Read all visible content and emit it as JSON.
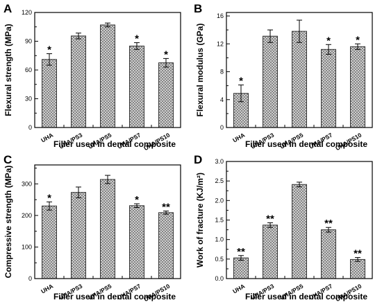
{
  "chart_data": [
    {
      "type": "bar",
      "panel": "A",
      "categories": [
        "UHA",
        "UHA/PS3",
        "UHA/PS5",
        "UHA/PS7",
        "UHA/PS10"
      ],
      "values": [
        71,
        95.5,
        107,
        85,
        67.5
      ],
      "errors": [
        6,
        3,
        2,
        3.5,
        4.5
      ],
      "annotations": [
        "*",
        "",
        "",
        "*",
        "*"
      ],
      "xlabel": "Filler used in dental composite",
      "ylabel": "Flexural strength (MPa)",
      "ylim": [
        0,
        120
      ],
      "yticks": [
        0,
        30,
        60,
        90,
        120
      ],
      "ytick_labels": [
        "0",
        "30",
        "60",
        "90",
        "120"
      ],
      "grid": false
    },
    {
      "type": "bar",
      "panel": "B",
      "categories": [
        "UHA",
        "UHA/PS3",
        "UHA/PS5",
        "UHA/PS7",
        "UHA/PS10"
      ],
      "values": [
        4.9,
        13.1,
        13.8,
        11.2,
        11.6
      ],
      "errors": [
        1.2,
        0.9,
        1.6,
        0.7,
        0.4
      ],
      "annotations": [
        "*",
        "",
        "",
        "*",
        "*"
      ],
      "xlabel": "Filler used in dental composite",
      "ylabel": "Flexural modulus (GPa)",
      "ylim": [
        0,
        16.5
      ],
      "yticks": [
        0,
        4,
        8,
        12,
        16
      ],
      "ytick_labels": [
        "0",
        "4",
        "8",
        "12",
        "16"
      ],
      "grid": false
    },
    {
      "type": "bar",
      "panel": "C",
      "categories": [
        "UHA",
        "UHA/PS3",
        "UHA/PS5",
        "UHA/PS7",
        "UHA/PS10"
      ],
      "values": [
        230,
        273,
        314,
        231,
        209
      ],
      "errors": [
        13,
        17,
        13,
        6,
        5
      ],
      "annotations": [
        "*",
        "",
        "",
        "*",
        "**"
      ],
      "xlabel": "Filler used in dental composite",
      "ylabel": "Compressive strength (MPa)",
      "ylim": [
        0,
        360
      ],
      "yticks": [
        0,
        100,
        200,
        300
      ],
      "ytick_labels": [
        "0",
        "100",
        "200",
        "300"
      ],
      "grid": false
    },
    {
      "type": "bar",
      "panel": "D",
      "categories": [
        "UHA",
        "UHA/PS3",
        "UHA/PS5",
        "UHA/PS7",
        "UHA/PS10"
      ],
      "values": [
        0.53,
        1.37,
        2.41,
        1.25,
        0.49
      ],
      "errors": [
        0.06,
        0.06,
        0.06,
        0.06,
        0.05
      ],
      "annotations": [
        "**",
        "**",
        "",
        "**",
        "**"
      ],
      "xlabel": "Filler used in dental composite",
      "ylabel": "Work of fracture (KJ/m²)",
      "ylim": [
        0,
        3.0
      ],
      "yticks": [
        0.0,
        0.5,
        1.0,
        1.5,
        2.0,
        2.5,
        3.0
      ],
      "ytick_labels": [
        "0.0",
        "0.5",
        "1.0",
        "1.5",
        "2.0",
        "2.5",
        "3.0"
      ],
      "grid": false
    }
  ],
  "colors": {
    "bar_fill": "#d9d9d9",
    "hatch_line": "#555555",
    "axis": "#000000"
  }
}
